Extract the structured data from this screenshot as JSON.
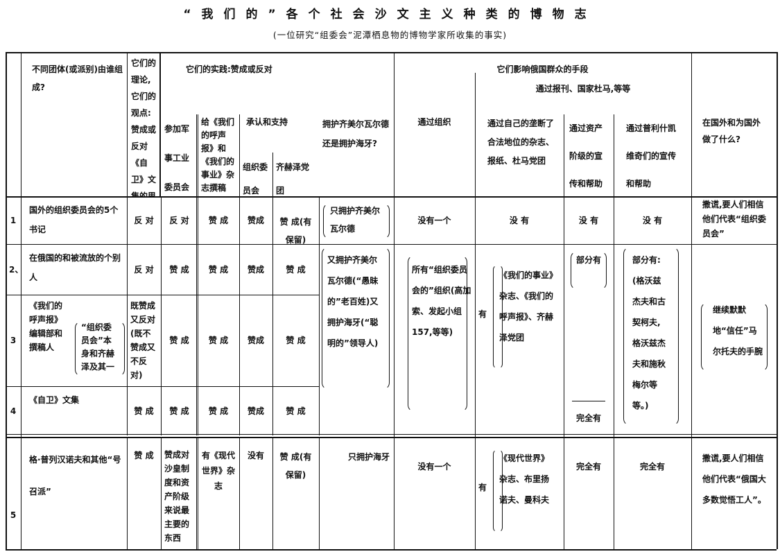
{
  "title": "“我们的”各个社会沙文主义种类的博物志",
  "subtitle": "(一位研究“组委会”泥潭栖息物的博物学家所收集的事实)",
  "header": {
    "group": "不同团体(或派别)由谁组成?",
    "theory": "它们的理论,它们的观点:赞成或反对《自卫》文集的思想",
    "practice": "它们的实践:赞成或反对",
    "military": "参加军事工业委员会",
    "write": "给《我们的呼声报》和《我们的事业》杂志撰稿",
    "support": "承认和支持",
    "oc": "组织委员会",
    "chkheidze": "齐赫泽党团",
    "zimmerwald": "拥护齐美尔瓦尔德还是拥护海牙?",
    "means": "它们影响俄国群众的手段",
    "means_press": "通过报刊、国家杜马,等等",
    "org": "通过组织",
    "own": "通过自己的垄断了合法地位的杂志、报纸、杜马党团",
    "bourgeois": "通过资产阶级的宣传和帮助",
    "purishkevich": "通过普利什凯维奇们的宣传和帮助",
    "abroad": "在国外和为国外做了什么?"
  },
  "rows": [
    {
      "num": "1",
      "group": "国外的组织委员会的5个书记",
      "theory": "反 对",
      "military": "反 对",
      "write": "赞 成",
      "oc": "赞成",
      "chkheidze": "赞 成(有保留)",
      "zimmerwald": "只拥护齐美尔瓦尔德",
      "org": "没有一个",
      "own": "没 有",
      "bourgeois": "没 有",
      "purishkevich": "没 有",
      "abroad": "撒谎,要人们相信他们代表“组织委员会”"
    },
    {
      "num": "2、",
      "group": "在俄国的和被流放的个别人",
      "theory": "反 对",
      "military": "赞 成",
      "write": "赞 成",
      "oc": "赞成",
      "chkheidze": "赞 成"
    },
    {
      "num": "3",
      "group": "《我们的呼声报》编辑部和撰稿人",
      "group_note": "“组织委员会”本身和齐赫泽及其一伙",
      "theory": "既赞成又反对(既不赞成又不反对)",
      "military": "赞 成",
      "write": "赞 成",
      "oc": "赞成",
      "chkheidze": "赞 成"
    },
    {
      "num": "4",
      "group": "《自卫》文集",
      "theory": "赞 成",
      "military": "赞 成",
      "write": "赞 成",
      "oc": "赞成",
      "chkheidze": "赞 成"
    },
    {
      "num": "5",
      "group": "格·普列汉诺夫和其他“号召派”",
      "theory": "赞 成",
      "military": "赞成对沙皇制度和资产阶级来说最主要的东西",
      "write": "有《现代世界》杂志",
      "oc": "没有",
      "chkheidze": "赞 成(有保留)",
      "zimmerwald": "只拥护海牙",
      "org": "没有一个",
      "own_has": "有",
      "own": "《现代世界》杂志、布里扬诺夫、曼科夫",
      "bourgeois": "完全有",
      "purishkevich": "完全有",
      "abroad": "撒谎,要人们相信他们代表“俄国大多数觉悟工人”。"
    }
  ],
  "merged_2_4": {
    "zimmerwald": "又拥护齐美尔瓦尔德(“愚昧的”老百姓)又拥护海牙(“聪明的”领导人)",
    "org": "所有“组织委员会的”组织(高加索、发起小组157,等等)",
    "own_has": "有",
    "own": "《我们的事业》杂志、《我们的呼声报》、齐赫泽党团",
    "bourgeois_partial": "部分有",
    "bourgeois_full": "完全有",
    "purishkevich": "部分有:(格沃兹杰夫和古契柯夫,格沃兹杰夫和施秋梅尔等等。)",
    "abroad": "继续默默地“信任”马尔托夫的手腕"
  }
}
